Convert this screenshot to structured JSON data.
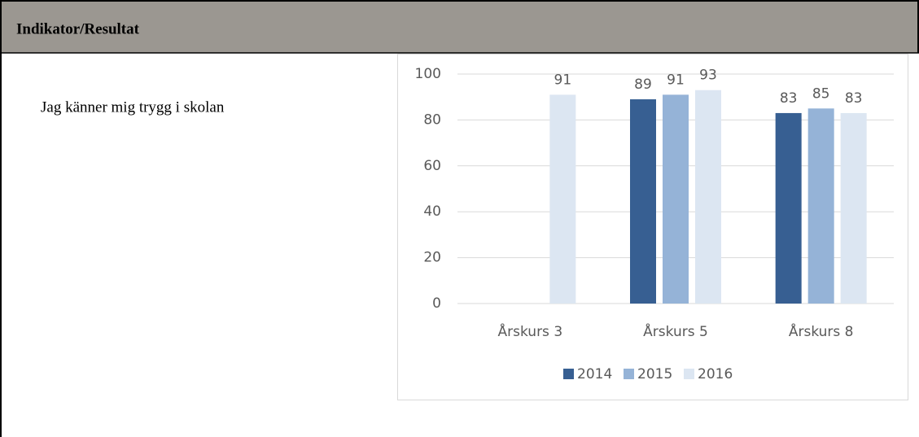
{
  "header": {
    "title": "Indikator/Resultat"
  },
  "row": {
    "label": "Jag känner mig trygg i skolan"
  },
  "chart_data": {
    "type": "bar",
    "categories": [
      "Årskurs 3",
      "Årskurs 5",
      "Årskurs 8"
    ],
    "series": [
      {
        "name": "2014",
        "color": "#375f92",
        "values": [
          null,
          89,
          83
        ]
      },
      {
        "name": "2015",
        "color": "#95b3d7",
        "values": [
          null,
          91,
          85
        ]
      },
      {
        "name": "2016",
        "color": "#dce6f2",
        "values": [
          91,
          93,
          83
        ]
      }
    ],
    "ylim": [
      0,
      100
    ],
    "yticks": [
      0,
      20,
      40,
      60,
      80,
      100
    ],
    "grid": true,
    "legend": "bottom"
  }
}
